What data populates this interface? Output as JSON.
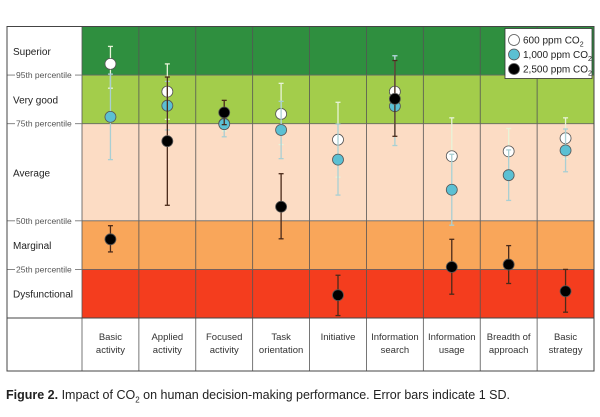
{
  "chart_data": {
    "type": "scatter",
    "title": "Impact of CO2 on human decision-making performance",
    "ylim": [
      0,
      6
    ],
    "bands": [
      {
        "label": "Dysfunctional",
        "from": 0,
        "to": 1,
        "color": "#f43d1e"
      },
      {
        "label": "Marginal",
        "from": 1,
        "to": 2,
        "color": "#f9a65a"
      },
      {
        "label": "Average",
        "from": 2,
        "to": 4,
        "color": "#fcdcc4"
      },
      {
        "label": "Very good",
        "from": 4,
        "to": 5,
        "color": "#a3cd4b"
      },
      {
        "label": "Superior",
        "from": 5,
        "to": 6,
        "color": "#2f8f3f"
      }
    ],
    "thresholds": [
      {
        "label": "25th percentile",
        "value": 1
      },
      {
        "label": "50th percentile",
        "value": 2
      },
      {
        "label": "75th percentile",
        "value": 4
      },
      {
        "label": "95th percentile",
        "value": 5
      }
    ],
    "categories": [
      [
        "Basic",
        "activity"
      ],
      [
        "Applied",
        "activity"
      ],
      [
        "Focused",
        "activity"
      ],
      [
        "Task",
        "orientation"
      ],
      [
        "Initiative"
      ],
      [
        "Information",
        "search"
      ],
      [
        "Information",
        "usage"
      ],
      [
        "Breadth of",
        "approach"
      ],
      [
        "Basic",
        "strategy"
      ]
    ],
    "series": [
      {
        "name": "600 ppm CO2",
        "label": "600 ppm CO",
        "sub": "2",
        "fill": "#ffffff",
        "bar": "#e8f4d8",
        "values": [
          5.23,
          4.66,
          4.0,
          4.2,
          3.67,
          4.66,
          3.33,
          3.43,
          3.7
        ],
        "err_high": [
          5.59,
          5.23,
          4.15,
          4.83,
          4.44,
          5.4,
          4.12,
          3.9,
          4.12
        ],
        "err_low": [
          4.73,
          4.09,
          3.85,
          3.57,
          2.9,
          3.55,
          2.54,
          2.96,
          3.28
        ]
      },
      {
        "name": "1,000 ppm CO2",
        "label": "1,000 ppm CO",
        "sub": "2",
        "fill": "#5bc0d3",
        "bar": "#a9cfd3",
        "values": [
          4.14,
          4.37,
          3.99,
          3.87,
          3.26,
          4.36,
          2.64,
          2.94,
          3.45
        ],
        "err_high": [
          5.02,
          4.87,
          4.25,
          4.46,
          3.99,
          5.4,
          3.37,
          3.46,
          3.89
        ],
        "err_low": [
          3.26,
          3.87,
          3.73,
          3.28,
          2.53,
          3.55,
          1.91,
          2.42,
          3.01
        ]
      },
      {
        "name": "2,500 ppm CO2",
        "label": "2,500 ppm CO",
        "sub": "2",
        "fill": "#000000",
        "bar": "#4a2a1a",
        "values": [
          1.62,
          3.64,
          4.23,
          2.29,
          0.47,
          4.51,
          1.05,
          1.1,
          0.55
        ],
        "err_high": [
          1.9,
          4.96,
          4.48,
          2.97,
          0.88,
          5.3,
          1.62,
          1.49,
          1.0
        ],
        "err_low": [
          1.36,
          2.32,
          3.98,
          1.63,
          0.05,
          3.74,
          0.49,
          0.71,
          0.12
        ]
      }
    ],
    "legend_position": "top-right"
  },
  "caption": {
    "bold": "Figure 2.",
    "before": " Impact of CO",
    "sub": "2",
    "after": " on human decision-making performance. Error bars indicate 1 SD."
  }
}
